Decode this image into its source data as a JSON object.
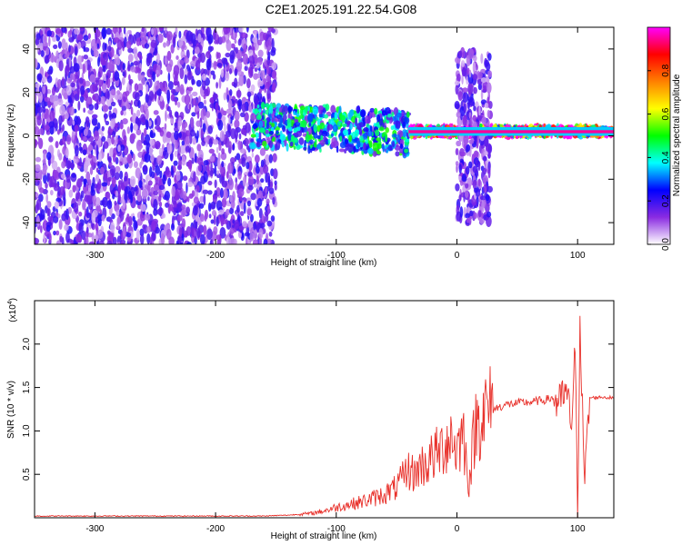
{
  "title": "C2E1.2025.191.22.54.G08",
  "chart_data": [
    {
      "type": "heatmap",
      "xlabel": "Height of straight line (km)",
      "ylabel": "Frequency (Hz)",
      "xlim": [
        -350,
        130
      ],
      "ylim": [
        -50,
        50
      ],
      "xticks": [
        -300,
        -200,
        -100,
        0,
        100
      ],
      "yticks": [
        -40,
        -20,
        0,
        20,
        40
      ],
      "grid": false,
      "colorbar": {
        "label": "Normalized spectral amplitude",
        "range": [
          0,
          1
        ],
        "ticks": [
          "0.0",
          "0.2",
          "0.4",
          "0.6",
          "0.8"
        ],
        "stops": [
          "#ffffff",
          "#8a2be2",
          "#0000ff",
          "#00ffff",
          "#00ff00",
          "#ffff00",
          "#ff8000",
          "#ff0000",
          "#ff00ff"
        ]
      },
      "regions": [
        {
          "x": [
            -350,
            -150
          ],
          "center_hz": 0,
          "spread_hz": 50,
          "amplitude": 0.15
        },
        {
          "x": [
            -170,
            -40
          ],
          "center_hz": 3,
          "spread_hz": 10,
          "amplitude": 0.35
        },
        {
          "x": [
            -40,
            130
          ],
          "center_hz": 2,
          "spread_hz": 2,
          "amplitude": 0.9
        },
        {
          "x": [
            0,
            28
          ],
          "center_hz": 0,
          "spread_hz": 40,
          "amplitude": 0.15
        }
      ]
    },
    {
      "type": "line",
      "xlabel": "Height of straight line (km)",
      "ylabel": "SNR (10 * v/v)",
      "yscale_label": "(x10",
      "yscale_exp": "4",
      "xlim": [
        -350,
        130
      ],
      "ylim": [
        0,
        2.5
      ],
      "xticks": [
        -300,
        -200,
        -100,
        0,
        100
      ],
      "yticks": [
        "0.5",
        "1.0",
        "1.5",
        "2.0"
      ],
      "color": "#e8302a",
      "grid": false,
      "series": [
        {
          "x": [
            -350,
            -300,
            -250,
            -200,
            -180,
            -160,
            -140,
            -120,
            -110,
            -100,
            -90,
            -80,
            -70,
            -60,
            -50,
            -45,
            -40,
            -35,
            -30,
            -25,
            -20,
            -15,
            -10,
            -5,
            0,
            5,
            10,
            15,
            20,
            30,
            40,
            50,
            60,
            70,
            80,
            85,
            90,
            95,
            98,
            100,
            102,
            104,
            106,
            110,
            120,
            130
          ],
          "y": [
            0.02,
            0.02,
            0.02,
            0.02,
            0.02,
            0.02,
            0.03,
            0.05,
            0.08,
            0.12,
            0.15,
            0.18,
            0.22,
            0.27,
            0.35,
            0.45,
            0.55,
            0.5,
            0.6,
            0.62,
            0.7,
            0.75,
            0.85,
            0.95,
            0.78,
            1.0,
            0.4,
            1.05,
            1.2,
            1.25,
            1.3,
            1.32,
            1.33,
            1.35,
            1.38,
            1.3,
            1.45,
            1.1,
            1.9,
            0.05,
            2.4,
            1.2,
            0.4,
            1.38,
            1.39,
            1.38
          ]
        }
      ]
    }
  ]
}
